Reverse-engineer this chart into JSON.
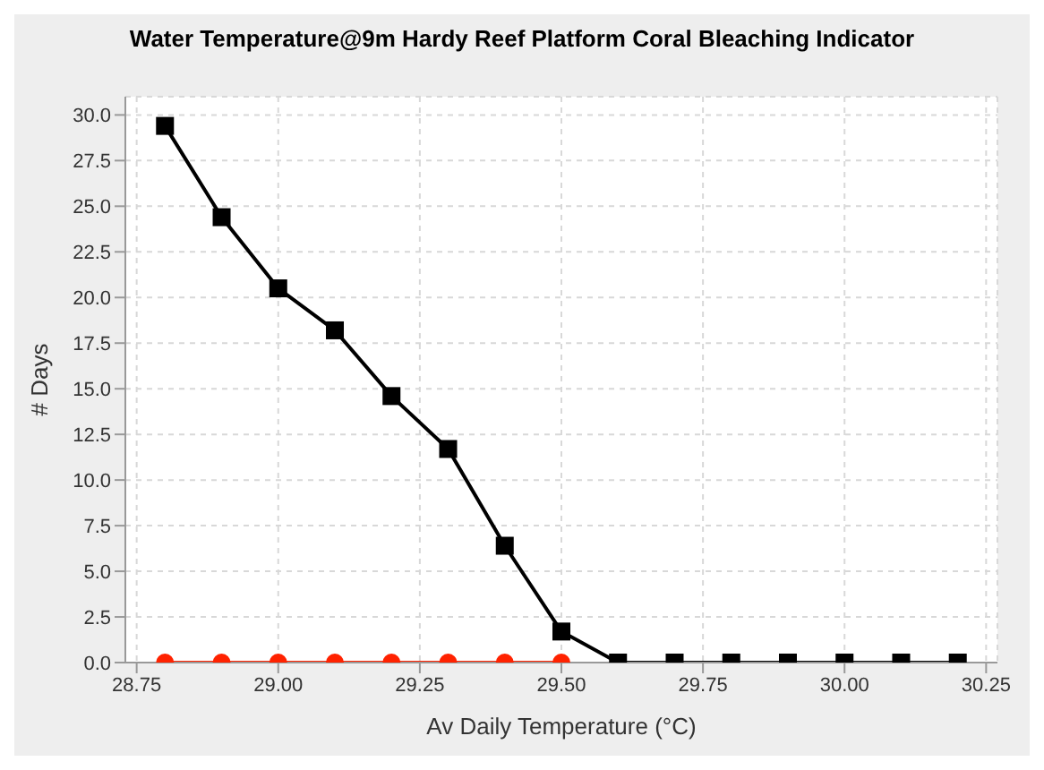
{
  "chart_data": {
    "type": "line",
    "title": "Water Temperature@9m Hardy Reef Platform Coral Bleaching Indicator",
    "xlabel": "Av Daily Temperature (°C)",
    "ylabel": "# Days",
    "x": [
      28.8,
      28.9,
      29.0,
      29.1,
      29.2,
      29.3,
      29.4,
      29.5,
      29.6,
      29.7,
      29.8,
      29.9,
      30.0,
      30.1,
      30.2
    ],
    "series": [
      {
        "color": "#000000",
        "marker": "square",
        "values": [
          29.4,
          24.4,
          20.5,
          18.2,
          14.6,
          11.7,
          6.4,
          1.7,
          0,
          0,
          0,
          0,
          0,
          0,
          0
        ]
      },
      {
        "color": "#ff2200",
        "marker": "circle",
        "x": [
          28.8,
          28.9,
          29.0,
          29.1,
          29.2,
          29.3,
          29.4,
          29.5
        ],
        "values": [
          0,
          0,
          0,
          0,
          0,
          0,
          0,
          0
        ]
      }
    ],
    "xlim": [
      28.73,
      30.27
    ],
    "xticks": [
      {
        "value": 28.75,
        "label": "28.75"
      },
      {
        "value": 29,
        "label": "29.00"
      },
      {
        "value": 29.25,
        "label": "29.25"
      },
      {
        "value": 29.5,
        "label": "29.50"
      },
      {
        "value": 29.75,
        "label": "29.75"
      },
      {
        "value": 30,
        "label": "30.00"
      },
      {
        "value": 30.25,
        "label": "30.25"
      }
    ],
    "ylim": [
      0,
      31
    ],
    "yticks": [
      {
        "value": 0,
        "label": "0.0"
      },
      {
        "value": 2.5,
        "label": "2.5"
      },
      {
        "value": 5,
        "label": "5.0"
      },
      {
        "value": 7.5,
        "label": "7.5"
      },
      {
        "value": 10,
        "label": "10.0"
      },
      {
        "value": 12.5,
        "label": "12.5"
      },
      {
        "value": 15,
        "label": "15.0"
      },
      {
        "value": 17.5,
        "label": "17.5"
      },
      {
        "value": 20,
        "label": "20.0"
      },
      {
        "value": 22.5,
        "label": "22.5"
      },
      {
        "value": 25,
        "label": "25.0"
      },
      {
        "value": 27.5,
        "label": "27.5"
      },
      {
        "value": 30,
        "label": "30.0"
      }
    ],
    "grid": true
  }
}
